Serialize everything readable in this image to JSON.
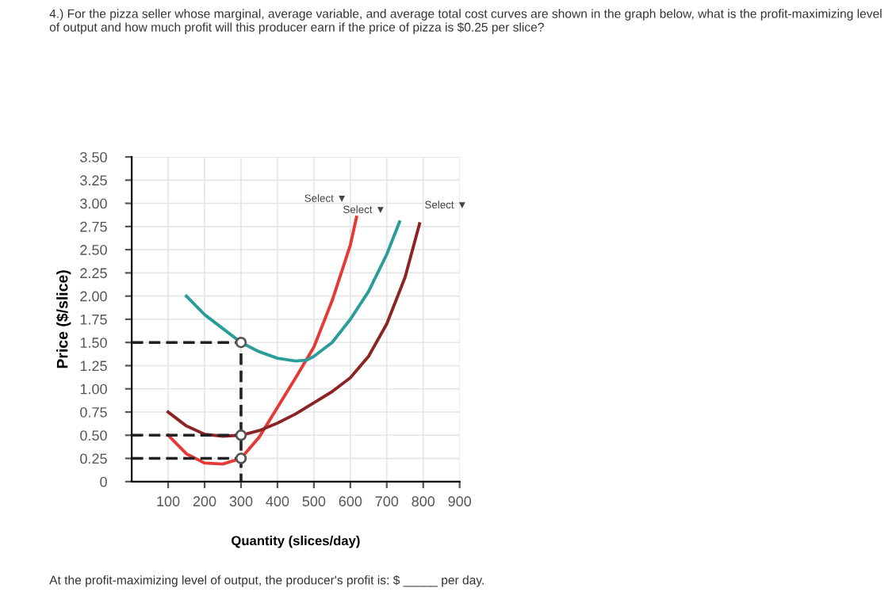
{
  "chart_data": {
    "type": "line",
    "title": "4.) For the pizza seller whose marginal, average variable, and average total cost curves are shown in the graph below, what is the profit-maximizing level of output and how much profit will this producer earn if the price of pizza is $0.25 per slice?",
    "xlabel": "Quantity (slices/day)",
    "ylabel": "Price ($/slice)",
    "series": [
      {
        "color": "#e53935",
        "x": [
          100,
          150,
          200,
          250,
          300,
          350,
          400,
          450,
          500,
          550,
          600,
          617
        ],
        "values": [
          0.5,
          0.3,
          0.2,
          0.19,
          0.25,
          0.48,
          0.8,
          1.12,
          1.45,
          1.95,
          2.55,
          2.85
        ]
      },
      {
        "color": "#2a9d98",
        "x": [
          150,
          200,
          250,
          300,
          350,
          400,
          450,
          480,
          500,
          550,
          600,
          650,
          700,
          735
        ],
        "values": [
          2.0,
          1.8,
          1.65,
          1.5,
          1.4,
          1.33,
          1.3,
          1.31,
          1.35,
          1.5,
          1.75,
          2.05,
          2.45,
          2.8
        ]
      },
      {
        "color": "#8b2525",
        "x": [
          100,
          150,
          200,
          250,
          300,
          350,
          400,
          450,
          500,
          550,
          600,
          650,
          700,
          750,
          790
        ],
        "values": [
          0.75,
          0.6,
          0.51,
          0.49,
          0.5,
          0.55,
          0.63,
          0.73,
          0.85,
          0.97,
          1.12,
          1.35,
          1.7,
          2.2,
          2.78
        ]
      },
      {
        "color": "#222222",
        "line_style": "dashed",
        "x": [
          0,
          300,
          300
        ],
        "values": [
          1.5,
          1.5,
          0
        ]
      },
      {
        "color": "#222222",
        "line_style": "dashed",
        "x": [
          0,
          300
        ],
        "values": [
          0.5,
          0.5
        ]
      },
      {
        "color": "#222222",
        "line_style": "dashed",
        "x": [
          0,
          300
        ],
        "values": [
          0.25,
          0.25
        ]
      },
      {
        "type": "scatter",
        "marker": "circle",
        "color": "#555555",
        "x": [
          300,
          300,
          300
        ],
        "values": [
          1.5,
          0.5,
          0.25
        ]
      }
    ],
    "annotations": [
      "Select ▼",
      "Select ▼",
      "Select ▼",
      "At the profit-maximizing level of output, the producer's profit is: $ _____ per day."
    ],
    "xlim": [
      0,
      900
    ],
    "ylim": [
      0,
      3.5
    ],
    "xticks": [
      100,
      200,
      300,
      400,
      500,
      600,
      700,
      800,
      900
    ],
    "yticks": [
      {
        "value": 0,
        "label": "0"
      },
      {
        "value": 0.25,
        "label": "0.25"
      },
      {
        "value": 0.5,
        "label": "0.50"
      },
      {
        "value": 0.75,
        "label": "0.75"
      },
      {
        "value": 1,
        "label": "1.00"
      },
      {
        "value": 1.25,
        "label": "1.25"
      },
      {
        "value": 1.5,
        "label": "1.50"
      },
      {
        "value": 1.75,
        "label": "1.75"
      },
      {
        "value": 2,
        "label": "2.00"
      },
      {
        "value": 2.25,
        "label": "2.25"
      },
      {
        "value": 2.5,
        "label": "2.50"
      },
      {
        "value": 2.75,
        "label": "2.75"
      },
      {
        "value": 3,
        "label": "3.00"
      },
      {
        "value": 3.25,
        "label": "3.25"
      },
      {
        "value": 3.5,
        "label": "3.50"
      }
    ],
    "grid": true
  }
}
